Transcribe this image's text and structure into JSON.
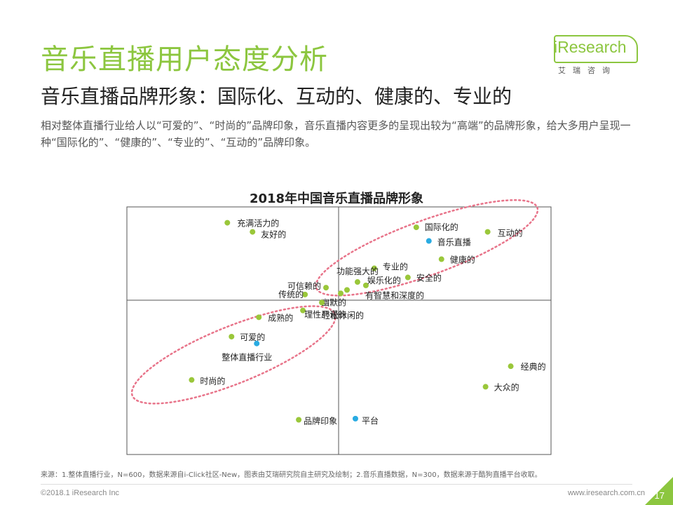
{
  "page": {
    "title": "音乐直播用户态度分析",
    "subtitle": "音乐直播品牌形象：国际化、互动的、健康的、专业的",
    "description": "相对整体直播行业给人以“可爱的”、“时尚的”品牌印象，音乐直播内容更多的呈现出较为“高端”的品牌形象，给大多用户呈现一种“国际化的”、“健康的”、“专业的”、“互动的”品牌印象。",
    "logo": {
      "text": "iResearch",
      "sub": "艾瑞咨询"
    },
    "footnote": "来源：1.整体直播行业，N=600，数据来源自i-Click社区-New，图表由艾瑞研究院自主研究及绘制；2.音乐直播数据，N=300，数据来源于酷狗直播平台收取。",
    "copyright": "©2018.1 iResearch Inc",
    "website": "www.iresearch.com.cn",
    "page_number": "17"
  },
  "colors": {
    "accent": "#8cc63f",
    "attribute_point": "#9ac73a",
    "platform_point": "#29abe2",
    "ellipse": "#e8748a",
    "axis": "#555555"
  },
  "chart_data": {
    "type": "scatter",
    "title": "2018年中国音乐直播品牌形象",
    "xlim": [
      -1,
      1
    ],
    "ylim": [
      -1,
      1
    ],
    "grid": false,
    "series": [
      {
        "name": "品牌印象",
        "color": "#9ac73a",
        "points": [
          {
            "label": "充满活力的",
            "x": -0.53,
            "y": 0.68
          },
          {
            "label": "友好的",
            "x": -0.41,
            "y": 0.6
          },
          {
            "label": "国际化的",
            "x": 0.37,
            "y": 0.64
          },
          {
            "label": "互动的",
            "x": 0.71,
            "y": 0.6
          },
          {
            "label": "健康的",
            "x": 0.49,
            "y": 0.36
          },
          {
            "label": "专业的",
            "x": 0.17,
            "y": 0.28
          },
          {
            "label": "安全的",
            "x": 0.33,
            "y": 0.2
          },
          {
            "label": "功能强大的",
            "x": 0.09,
            "y": 0.16
          },
          {
            "label": "娱乐化的",
            "x": 0.13,
            "y": 0.13
          },
          {
            "label": "可信赖的",
            "x": -0.06,
            "y": 0.11
          },
          {
            "label": "有智慧和深度的",
            "x": 0.04,
            "y": 0.09
          },
          {
            "label": "幽默的",
            "x": 0.01,
            "y": 0.06
          },
          {
            "label": "传统的",
            "x": -0.16,
            "y": 0.05
          },
          {
            "label": "轻松休闲的",
            "x": -0.08,
            "y": -0.02
          },
          {
            "label": "理性严谨的",
            "x": -0.17,
            "y": -0.09
          },
          {
            "label": "成熟的",
            "x": -0.38,
            "y": -0.15
          },
          {
            "label": "可爱的",
            "x": -0.51,
            "y": -0.32
          },
          {
            "label": "时尚的",
            "x": -0.7,
            "y": -0.7
          },
          {
            "label": "经典的",
            "x": 0.82,
            "y": -0.58
          },
          {
            "label": "大众的",
            "x": 0.7,
            "y": -0.76
          },
          {
            "label": "品牌印象",
            "x": -0.19,
            "y": -1.05
          }
        ]
      },
      {
        "name": "平台",
        "color": "#29abe2",
        "points": [
          {
            "label": "音乐直播",
            "x": 0.43,
            "y": 0.52
          },
          {
            "label": "整体直播行业",
            "x": -0.39,
            "y": -0.38
          },
          {
            "label": "平台",
            "x": 0.08,
            "y": -1.04
          }
        ]
      }
    ],
    "annotations": [
      {
        "shape": "dotted-ellipse",
        "cx": 0.42,
        "cy": 0.46,
        "rx": 0.56,
        "ry": 0.24,
        "angle": -20
      },
      {
        "shape": "dotted-ellipse",
        "cx": -0.5,
        "cy": -0.48,
        "rx": 0.52,
        "ry": 0.25,
        "angle": -22
      }
    ]
  }
}
